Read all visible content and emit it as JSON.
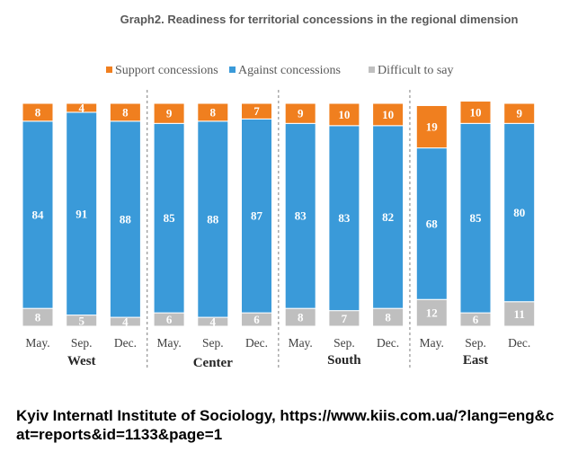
{
  "chart_data": {
    "type": "stacked-bar",
    "title": "Graph2. Readiness for territorial concessions in the regional dimension",
    "categories": [
      "May.",
      "Sep.",
      "Dec.",
      "May.",
      "Sep.",
      "Dec.",
      "May.",
      "Sep.",
      "Dec.",
      "May.",
      "Sep.",
      "Dec."
    ],
    "groups": [
      {
        "name": "West",
        "months": [
          "May.",
          "Sep.",
          "Dec."
        ]
      },
      {
        "name": "Center",
        "months": [
          "May.",
          "Sep.",
          "Dec."
        ]
      },
      {
        "name": "South",
        "months": [
          "May.",
          "Sep.",
          "Dec."
        ]
      },
      {
        "name": "East",
        "months": [
          "May.",
          "Sep.",
          "Dec."
        ]
      }
    ],
    "series": [
      {
        "name": "Difficult to say",
        "color": "#bfbfbf",
        "values": [
          8,
          5,
          4,
          6,
          4,
          6,
          8,
          7,
          8,
          12,
          6,
          11
        ]
      },
      {
        "name": "Against concessions",
        "color": "#3a9ad9",
        "values": [
          84,
          91,
          88,
          85,
          88,
          87,
          83,
          83,
          82,
          68,
          85,
          80
        ]
      },
      {
        "name": "Support concessions",
        "color": "#f07f1f",
        "values": [
          8,
          4,
          8,
          9,
          8,
          7,
          9,
          10,
          10,
          19,
          10,
          9
        ]
      }
    ],
    "legend_order": [
      "Support concessions",
      "Against concessions",
      "Difficult to say"
    ],
    "legend_position": "top",
    "ylim": [
      0,
      100
    ]
  },
  "source": "Kyiv Internatl Institute of Sociology, https://www.kiis.com.ua/?lang=eng&cat=reports&id=1133&page=1"
}
